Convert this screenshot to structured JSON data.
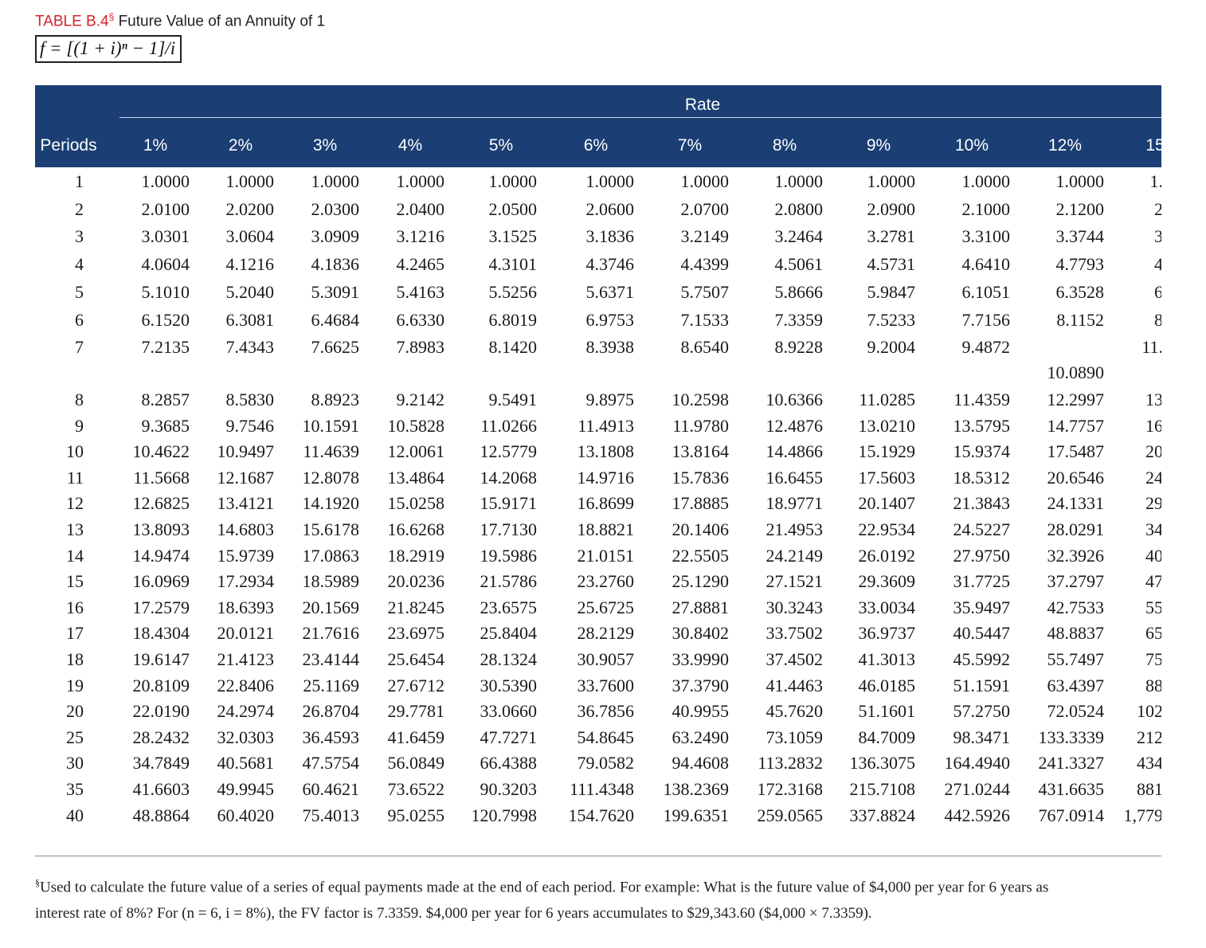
{
  "header": {
    "table_label": "TABLE B.4",
    "marker": "§",
    "title": "Future Value of an Annuity of 1",
    "formula": "f = [(1 + i)ⁿ − 1]/i"
  },
  "table": {
    "group_header": "Rate",
    "columns": [
      "Periods",
      "1%",
      "2%",
      "3%",
      "4%",
      "5%",
      "6%",
      "7%",
      "8%",
      "9%",
      "10%",
      "12%",
      "15"
    ],
    "rows": [
      [
        "1",
        "1.0000",
        "1.0000",
        "1.0000",
        "1.0000",
        "1.0000",
        "1.0000",
        "1.0000",
        "1.0000",
        "1.0000",
        "1.0000",
        "1.0000",
        "1."
      ],
      [
        "2",
        "2.0100",
        "2.0200",
        "2.0300",
        "2.0400",
        "2.0500",
        "2.0600",
        "2.0700",
        "2.0800",
        "2.0900",
        "2.1000",
        "2.1200",
        "2"
      ],
      [
        "3",
        "3.0301",
        "3.0604",
        "3.0909",
        "3.1216",
        "3.1525",
        "3.1836",
        "3.2149",
        "3.2464",
        "3.2781",
        "3.3100",
        "3.3744",
        "3"
      ],
      [
        "4",
        "4.0604",
        "4.1216",
        "4.1836",
        "4.2465",
        "4.3101",
        "4.3746",
        "4.4399",
        "4.5061",
        "4.5731",
        "4.6410",
        "4.7793",
        "4"
      ],
      [
        "5",
        "5.1010",
        "5.2040",
        "5.3091",
        "5.4163",
        "5.5256",
        "5.6371",
        "5.7507",
        "5.8666",
        "5.9847",
        "6.1051",
        "6.3528",
        "6"
      ],
      [
        "6",
        "6.1520",
        "6.3081",
        "6.4684",
        "6.6330",
        "6.8019",
        "6.9753",
        "7.1533",
        "7.3359",
        "7.5233",
        "7.7156",
        "8.1152",
        "8"
      ],
      [
        "7",
        "7.2135",
        "7.4343",
        "7.6625",
        "7.8983",
        "8.1420",
        "8.3938",
        "8.6540",
        "8.9228",
        "9.2004",
        "9.4872",
        "10.0890",
        "11."
      ],
      [
        "8",
        "8.2857",
        "8.5830",
        "8.8923",
        "9.2142",
        "9.5491",
        "9.8975",
        "10.2598",
        "10.6366",
        "11.0285",
        "11.4359",
        "12.2997",
        "13"
      ],
      [
        "9",
        "9.3685",
        "9.7546",
        "10.1591",
        "10.5828",
        "11.0266",
        "11.4913",
        "11.9780",
        "12.4876",
        "13.0210",
        "13.5795",
        "14.7757",
        "16"
      ],
      [
        "10",
        "10.4622",
        "10.9497",
        "11.4639",
        "12.0061",
        "12.5779",
        "13.1808",
        "13.8164",
        "14.4866",
        "15.1929",
        "15.9374",
        "17.5487",
        "20"
      ],
      [
        "11",
        "11.5668",
        "12.1687",
        "12.8078",
        "13.4864",
        "14.2068",
        "14.9716",
        "15.7836",
        "16.6455",
        "17.5603",
        "18.5312",
        "20.6546",
        "24"
      ],
      [
        "12",
        "12.6825",
        "13.4121",
        "14.1920",
        "15.0258",
        "15.9171",
        "16.8699",
        "17.8885",
        "18.9771",
        "20.1407",
        "21.3843",
        "24.1331",
        "29"
      ],
      [
        "13",
        "13.8093",
        "14.6803",
        "15.6178",
        "16.6268",
        "17.7130",
        "18.8821",
        "20.1406",
        "21.4953",
        "22.9534",
        "24.5227",
        "28.0291",
        "34"
      ],
      [
        "14",
        "14.9474",
        "15.9739",
        "17.0863",
        "18.2919",
        "19.5986",
        "21.0151",
        "22.5505",
        "24.2149",
        "26.0192",
        "27.9750",
        "32.3926",
        "40"
      ],
      [
        "15",
        "16.0969",
        "17.2934",
        "18.5989",
        "20.0236",
        "21.5786",
        "23.2760",
        "25.1290",
        "27.1521",
        "29.3609",
        "31.7725",
        "37.2797",
        "47"
      ],
      [
        "16",
        "17.2579",
        "18.6393",
        "20.1569",
        "21.8245",
        "23.6575",
        "25.6725",
        "27.8881",
        "30.3243",
        "33.0034",
        "35.9497",
        "42.7533",
        "55"
      ],
      [
        "17",
        "18.4304",
        "20.0121",
        "21.7616",
        "23.6975",
        "25.8404",
        "28.2129",
        "30.8402",
        "33.7502",
        "36.9737",
        "40.5447",
        "48.8837",
        "65"
      ],
      [
        "18",
        "19.6147",
        "21.4123",
        "23.4144",
        "25.6454",
        "28.1324",
        "30.9057",
        "33.9990",
        "37.4502",
        "41.3013",
        "45.5992",
        "55.7497",
        "75"
      ],
      [
        "19",
        "20.8109",
        "22.8406",
        "25.1169",
        "27.6712",
        "30.5390",
        "33.7600",
        "37.3790",
        "41.4463",
        "46.0185",
        "51.1591",
        "63.4397",
        "88"
      ],
      [
        "20",
        "22.0190",
        "24.2974",
        "26.8704",
        "29.7781",
        "33.0660",
        "36.7856",
        "40.9955",
        "45.7620",
        "51.1601",
        "57.2750",
        "72.0524",
        "102"
      ],
      [
        "25",
        "28.2432",
        "32.0303",
        "36.4593",
        "41.6459",
        "47.7271",
        "54.8645",
        "63.2490",
        "73.1059",
        "84.7009",
        "98.3471",
        "133.3339",
        "212"
      ],
      [
        "30",
        "34.7849",
        "40.5681",
        "47.5754",
        "56.0849",
        "66.4388",
        "79.0582",
        "94.4608",
        "113.2832",
        "136.3075",
        "164.4940",
        "241.3327",
        "434"
      ],
      [
        "35",
        "41.6603",
        "49.9945",
        "60.4621",
        "73.6522",
        "90.3203",
        "111.4348",
        "138.2369",
        "172.3168",
        "215.7108",
        "271.0244",
        "431.6635",
        "881"
      ],
      [
        "40",
        "48.8864",
        "60.4020",
        "75.4013",
        "95.0255",
        "120.7998",
        "154.7620",
        "199.6351",
        "259.0565",
        "337.8824",
        "442.5926",
        "767.0914",
        "1,779"
      ]
    ]
  },
  "footnote": {
    "marker": "§",
    "lines": [
      "Used to calculate the future value of a series of equal payments made at the end of each period. For example: What is the future value of $4,000 per year for 6 years as",
      "interest rate of 8%? For (n = 6, i = 8%), the FV factor is 7.3359. $4,000 per year for 6 years accumulates to $29,343.60 ($4,000 × 7.3359)."
    ]
  }
}
